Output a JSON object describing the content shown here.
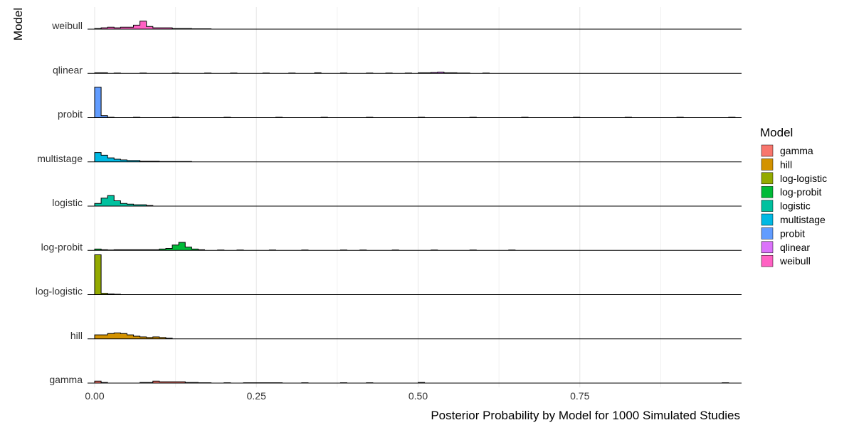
{
  "chart_data": {
    "type": "ridgeline-histogram",
    "xlabel": "Posterior Probability by Model for 1000 Simulated Studies",
    "ylabel": "Model",
    "xlim": [
      0,
      1
    ],
    "x_ticks": [
      0,
      0.25,
      0.5,
      0.75
    ],
    "x_tick_labels": [
      "0.00",
      "0.25",
      "0.50",
      "0.75"
    ],
    "bin_width": 0.01,
    "grid": "vertical major and minor",
    "legend": {
      "title": "Model",
      "position": "right",
      "items": [
        {
          "label": "gamma",
          "color": "#F8766D"
        },
        {
          "label": "hill",
          "color": "#D39200"
        },
        {
          "label": "log-logistic",
          "color": "#93AA00"
        },
        {
          "label": "log-probit",
          "color": "#00BA38"
        },
        {
          "label": "logistic",
          "color": "#00C19F"
        },
        {
          "label": "multistage",
          "color": "#00B9E3"
        },
        {
          "label": "probit",
          "color": "#619CFF"
        },
        {
          "label": "qlinear",
          "color": "#DB72FB"
        },
        {
          "label": "weibull",
          "color": "#FF61C3"
        }
      ]
    },
    "series": [
      {
        "name": "gamma",
        "color": "#F8766D",
        "peaks": [
          [
            0.0,
            3
          ],
          [
            0.01,
            1
          ],
          [
            0.02,
            0
          ],
          [
            0.05,
            0
          ],
          [
            0.06,
            0
          ],
          [
            0.07,
            1
          ],
          [
            0.08,
            1
          ],
          [
            0.09,
            3
          ],
          [
            0.1,
            2
          ],
          [
            0.11,
            2
          ],
          [
            0.12,
            2
          ],
          [
            0.13,
            2
          ],
          [
            0.14,
            1
          ],
          [
            0.15,
            1
          ],
          [
            0.16,
            0.5
          ],
          [
            0.17,
            0.5
          ],
          [
            0.2,
            0.5
          ],
          [
            0.22,
            0
          ],
          [
            0.23,
            0.5
          ],
          [
            0.24,
            0.5
          ],
          [
            0.25,
            0.5
          ],
          [
            0.26,
            0.5
          ],
          [
            0.27,
            0.5
          ],
          [
            0.28,
            0.5
          ],
          [
            0.32,
            0.5
          ],
          [
            0.38,
            0.5
          ],
          [
            0.42,
            0.5
          ],
          [
            0.5,
            1
          ],
          [
            0.97,
            0.5
          ]
        ]
      },
      {
        "name": "hill",
        "color": "#D39200",
        "peaks": [
          [
            0.0,
            6
          ],
          [
            0.01,
            6
          ],
          [
            0.02,
            8
          ],
          [
            0.03,
            9
          ],
          [
            0.04,
            8
          ],
          [
            0.05,
            6
          ],
          [
            0.06,
            4
          ],
          [
            0.07,
            3
          ],
          [
            0.08,
            2
          ],
          [
            0.09,
            3
          ],
          [
            0.1,
            2
          ],
          [
            0.11,
            1
          ]
        ]
      },
      {
        "name": "log-logistic",
        "color": "#93AA00",
        "peaks": [
          [
            0.0,
            60
          ],
          [
            0.01,
            2
          ],
          [
            0.02,
            1
          ],
          [
            0.03,
            0.5
          ]
        ]
      },
      {
        "name": "log-probit",
        "color": "#00BA38",
        "peaks": [
          [
            0.0,
            2
          ],
          [
            0.01,
            1
          ],
          [
            0.02,
            0.5
          ],
          [
            0.03,
            1
          ],
          [
            0.04,
            1
          ],
          [
            0.05,
            1
          ],
          [
            0.06,
            1
          ],
          [
            0.07,
            1
          ],
          [
            0.08,
            1
          ],
          [
            0.09,
            1
          ],
          [
            0.1,
            2
          ],
          [
            0.11,
            3
          ],
          [
            0.12,
            8
          ],
          [
            0.13,
            12
          ],
          [
            0.14,
            5
          ],
          [
            0.15,
            2
          ],
          [
            0.16,
            1
          ],
          [
            0.19,
            0.5
          ],
          [
            0.22,
            0.5
          ],
          [
            0.27,
            0.5
          ],
          [
            0.32,
            0.5
          ],
          [
            0.38,
            0.5
          ],
          [
            0.41,
            0.5
          ],
          [
            0.46,
            0.5
          ],
          [
            0.52,
            0.5
          ],
          [
            0.58,
            0.5
          ],
          [
            0.64,
            0.5
          ]
        ]
      },
      {
        "name": "logistic",
        "color": "#00C19F",
        "peaks": [
          [
            0.0,
            4
          ],
          [
            0.01,
            12
          ],
          [
            0.02,
            16
          ],
          [
            0.03,
            8
          ],
          [
            0.04,
            4
          ],
          [
            0.05,
            3
          ],
          [
            0.06,
            2
          ],
          [
            0.07,
            2
          ],
          [
            0.08,
            1
          ]
        ]
      },
      {
        "name": "multistage",
        "color": "#00B9E3",
        "peaks": [
          [
            0.0,
            14
          ],
          [
            0.01,
            10
          ],
          [
            0.02,
            6
          ],
          [
            0.03,
            4
          ],
          [
            0.04,
            3
          ],
          [
            0.05,
            2
          ],
          [
            0.06,
            2
          ],
          [
            0.07,
            1
          ],
          [
            0.08,
            1
          ],
          [
            0.09,
            1
          ],
          [
            0.1,
            0.5
          ],
          [
            0.11,
            0.5
          ],
          [
            0.12,
            0.5
          ],
          [
            0.13,
            0.5
          ],
          [
            0.14,
            0.5
          ]
        ]
      },
      {
        "name": "probit",
        "color": "#619CFF",
        "peaks": [
          [
            0.0,
            46
          ],
          [
            0.01,
            3
          ],
          [
            0.02,
            0.5
          ],
          [
            0.06,
            0.5
          ],
          [
            0.12,
            0.5
          ],
          [
            0.2,
            0.5
          ],
          [
            0.28,
            0.5
          ],
          [
            0.35,
            0.5
          ],
          [
            0.42,
            0.5
          ],
          [
            0.5,
            0.5
          ],
          [
            0.58,
            0.5
          ],
          [
            0.66,
            0.5
          ],
          [
            0.74,
            0.5
          ],
          [
            0.82,
            0.5
          ],
          [
            0.9,
            0.5
          ],
          [
            0.98,
            0.5
          ]
        ]
      },
      {
        "name": "qlinear",
        "color": "#DB72FB",
        "peaks": [
          [
            0.0,
            1
          ],
          [
            0.01,
            1
          ],
          [
            0.03,
            0.5
          ],
          [
            0.07,
            0.5
          ],
          [
            0.12,
            0.5
          ],
          [
            0.17,
            0.5
          ],
          [
            0.21,
            0.5
          ],
          [
            0.26,
            0.5
          ],
          [
            0.3,
            0.5
          ],
          [
            0.34,
            1
          ],
          [
            0.38,
            0.5
          ],
          [
            0.42,
            0.5
          ],
          [
            0.45,
            0.5
          ],
          [
            0.48,
            0.5
          ],
          [
            0.5,
            1
          ],
          [
            0.51,
            1
          ],
          [
            0.52,
            1.5
          ],
          [
            0.53,
            2
          ],
          [
            0.54,
            1
          ],
          [
            0.55,
            1
          ],
          [
            0.56,
            0.5
          ],
          [
            0.57,
            0.5
          ],
          [
            0.6,
            0.5
          ]
        ]
      },
      {
        "name": "weibull",
        "color": "#FF61C3",
        "peaks": [
          [
            0.0,
            1
          ],
          [
            0.01,
            2
          ],
          [
            0.02,
            3
          ],
          [
            0.03,
            2
          ],
          [
            0.04,
            3
          ],
          [
            0.05,
            3
          ],
          [
            0.06,
            6
          ],
          [
            0.07,
            12
          ],
          [
            0.08,
            4
          ],
          [
            0.09,
            2
          ],
          [
            0.1,
            2
          ],
          [
            0.11,
            2
          ],
          [
            0.12,
            1
          ],
          [
            0.13,
            1
          ],
          [
            0.14,
            1
          ],
          [
            0.15,
            0.5
          ],
          [
            0.16,
            0.5
          ],
          [
            0.17,
            0.5
          ]
        ]
      }
    ]
  }
}
